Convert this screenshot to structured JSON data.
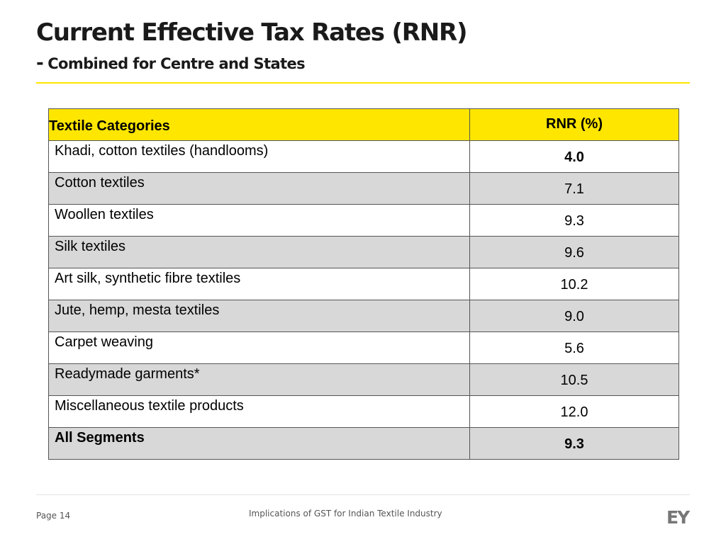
{
  "header": {
    "title": "Current Effective Tax Rates (RNR)",
    "subtitle_dash": "-",
    "subtitle": "Combined for Centre and States"
  },
  "table": {
    "headers": [
      "Textile Categories",
      "RNR (%)"
    ],
    "rows": [
      {
        "category": "Khadi, cotton textiles (handlooms)",
        "rnr": "4.0"
      },
      {
        "category": "Cotton textiles",
        "rnr": "7.1"
      },
      {
        "category": "Woollen textiles",
        "rnr": "9.3"
      },
      {
        "category": "Silk textiles",
        "rnr": "9.6"
      },
      {
        "category": "Art silk, synthetic fibre textiles",
        "rnr": "10.2"
      },
      {
        "category": "Jute, hemp, mesta textiles",
        "rnr": "9.0"
      },
      {
        "category": "Carpet weaving",
        "rnr": "5.6"
      },
      {
        "category": "Readymade garments*",
        "rnr": "10.5"
      },
      {
        "category": "Miscellaneous textile products",
        "rnr": "12.0"
      },
      {
        "category": "All Segments",
        "rnr": "9.3"
      }
    ]
  },
  "footer": {
    "page": "Page 14",
    "text": "Implications of GST for Indian Textile Industry",
    "logo": "EY"
  },
  "colors": {
    "accent_yellow": "#ffe600",
    "row_shade": "#d8d8d8"
  }
}
